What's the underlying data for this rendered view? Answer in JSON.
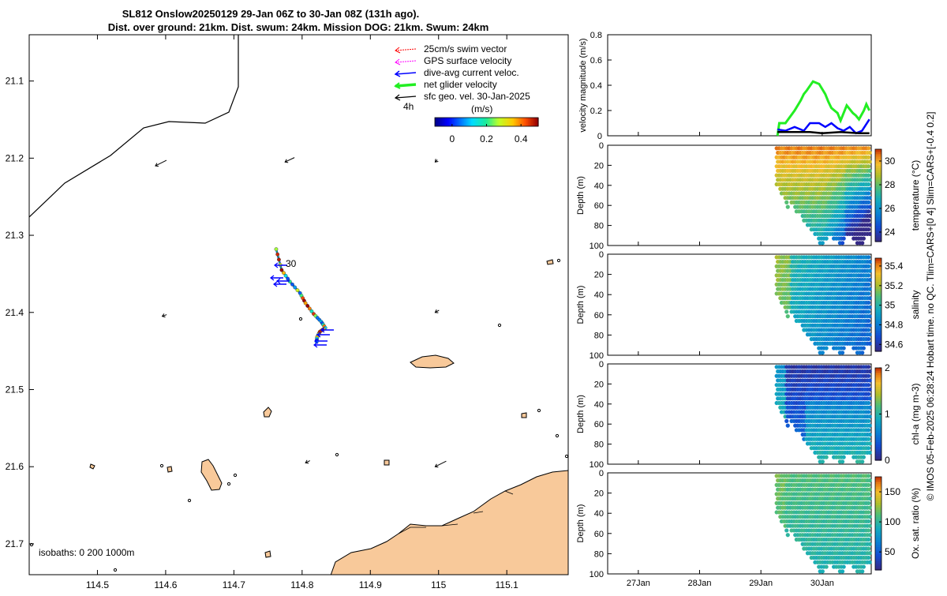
{
  "title": {
    "line1": "SL812 Onslow20250129 29-Jan 06Z to 30-Jan 08Z (131h ago).",
    "line2": "Dist. over ground: 21km. Dist. swum: 24km. Mission DOG: 21km. Swum: 24km"
  },
  "side_note": "© IMOS 05-Feb-2025 06:28:24 Hobart time. no QC. Tlim=CARS+[0 4] Slim=CARS+[-0.4 0.2]",
  "colors": {
    "land": "#f8c99a",
    "swim_vector": "#ff0000",
    "gps_velocity": "#ff00ff",
    "dive_avg": "#0000ff",
    "net_velocity": "#22ee22",
    "geo_velocity": "#000000"
  },
  "chart_data": [
    {
      "type": "map",
      "xlim": [
        114.4,
        115.19
      ],
      "ylim": [
        21.74,
        21.04
      ],
      "xticks": [
        "114.5",
        "114.6",
        "114.7",
        "114.8",
        "114.9",
        "115",
        "115.1"
      ],
      "yticks": [
        "21.1",
        "21.2",
        "21.3",
        "21.4",
        "21.5",
        "21.6",
        "21.7"
      ],
      "legend": [
        "25cm/s swim vector",
        "GPS surface velocity",
        "dive-avg current veloc.",
        "net glider velocity",
        "sfc geo. vel. 30-Jan-2025"
      ],
      "legend_location": "top-right",
      "time_step_label": "4h",
      "track_label": "30",
      "colorbar": {
        "label": "(m/s)",
        "ticks": [
          "0",
          "0.2",
          "0.4"
        ],
        "range": [
          -0.1,
          0.5
        ],
        "colormap": "jet"
      },
      "isobaths_label": "isobaths: 0   200  1000m",
      "track": [
        [
          114.762,
          21.318
        ],
        [
          114.77,
          21.345
        ],
        [
          114.782,
          21.36
        ],
        [
          114.797,
          21.375
        ],
        [
          114.805,
          21.388
        ],
        [
          114.817,
          21.402
        ],
        [
          114.828,
          21.412
        ],
        [
          114.834,
          21.42
        ],
        [
          114.826,
          21.425
        ],
        [
          114.822,
          21.432
        ],
        [
          114.821,
          21.44
        ]
      ],
      "geo_vectors": [
        {
          "lon": 114.585,
          "lat": 21.21,
          "u": 0.02,
          "v": 0.01
        },
        {
          "lon": 114.775,
          "lat": 21.205,
          "u": 0.017,
          "v": 0.008
        },
        {
          "lon": 114.995,
          "lat": 21.205,
          "u": 0.004,
          "v": 0.004
        },
        {
          "lon": 114.595,
          "lat": 21.405,
          "u": 0.008,
          "v": 0.003
        },
        {
          "lon": 114.995,
          "lat": 21.4,
          "u": 0.007,
          "v": 0.004
        },
        {
          "lon": 114.805,
          "lat": 21.595,
          "u": 0.008,
          "v": 0.004
        },
        {
          "lon": 114.995,
          "lat": 21.6,
          "u": 0.02,
          "v": 0.01
        }
      ]
    },
    {
      "type": "line",
      "ylabel": "velocity magnitude (m/s)",
      "ylim": [
        0,
        0.8
      ],
      "yticks": [
        "0",
        "0.2",
        "0.4",
        "0.6",
        "0.8"
      ],
      "xlim": [
        26.5,
        30.8
      ],
      "xticks": [
        "27Jan",
        "28Jan",
        "29Jan",
        "30Jan"
      ],
      "series": [
        {
          "name": "net glider velocity",
          "x": [
            29.27,
            29.3,
            29.4,
            29.55,
            29.65,
            29.7,
            29.75,
            29.85,
            29.95,
            30.05,
            30.1,
            30.15,
            30.2,
            30.25,
            30.3,
            30.4,
            30.5,
            30.55,
            30.6,
            30.68,
            30.72,
            30.77
          ],
          "y": [
            0.0,
            0.1,
            0.1,
            0.2,
            0.28,
            0.33,
            0.36,
            0.43,
            0.41,
            0.33,
            0.27,
            0.22,
            0.2,
            0.18,
            0.12,
            0.24,
            0.18,
            0.16,
            0.13,
            0.2,
            0.25,
            0.2
          ]
        },
        {
          "name": "dive-avg current veloc.",
          "x": [
            29.27,
            29.4,
            29.55,
            29.7,
            29.8,
            29.95,
            30.05,
            30.15,
            30.25,
            30.35,
            30.45,
            30.55,
            30.65,
            30.77
          ],
          "y": [
            0.05,
            0.04,
            0.07,
            0.04,
            0.1,
            0.1,
            0.07,
            0.1,
            0.06,
            0.04,
            0.07,
            0.02,
            0.04,
            0.13
          ]
        },
        {
          "name": "sfc geo. vel.",
          "x": [
            29.27,
            29.5,
            29.8,
            30.0,
            30.3,
            30.6,
            30.77
          ],
          "y": [
            0.03,
            0.03,
            0.03,
            0.02,
            0.03,
            0.02,
            0.02
          ]
        }
      ]
    },
    {
      "type": "heatmap",
      "ylabel": "Depth (m)",
      "ylim": [
        0,
        100
      ],
      "yticks": [
        "0",
        "20",
        "40",
        "60",
        "80",
        "100"
      ],
      "colorbar_label": "temperature (°C)",
      "colorbar_ticks": [
        "24",
        "26",
        "28",
        "30"
      ],
      "crange": [
        23.2,
        31.0
      ],
      "colormap": "parula"
    },
    {
      "type": "heatmap",
      "ylabel": "Depth (m)",
      "ylim": [
        0,
        100
      ],
      "yticks": [
        "0",
        "20",
        "40",
        "60",
        "80",
        "100"
      ],
      "colorbar_label": "salinity",
      "colorbar_ticks": [
        "34.6",
        "34.8",
        "35",
        "35.2",
        "35.4"
      ],
      "crange": [
        34.53,
        35.48
      ],
      "colormap": "parula"
    },
    {
      "type": "heatmap",
      "ylabel": "Depth (m)",
      "ylim": [
        0,
        100
      ],
      "yticks": [
        "0",
        "20",
        "40",
        "60",
        "80",
        "100"
      ],
      "colorbar_label": "chl-a (mg m-3)",
      "colorbar_ticks": [
        "0",
        "1",
        "2"
      ],
      "crange": [
        0,
        2
      ],
      "colormap": "parula"
    },
    {
      "type": "heatmap",
      "ylabel": "Depth (m)",
      "ylim": [
        0,
        100
      ],
      "yticks": [
        "0",
        "20",
        "40",
        "60",
        "80",
        "100"
      ],
      "colorbar_label": "Ox. sat. ratio (%)",
      "colorbar_ticks": [
        "50",
        "100",
        "150"
      ],
      "crange": [
        20,
        175
      ],
      "colormap": "parula",
      "xticks": [
        "27Jan",
        "28Jan",
        "29Jan",
        "30Jan"
      ]
    }
  ]
}
